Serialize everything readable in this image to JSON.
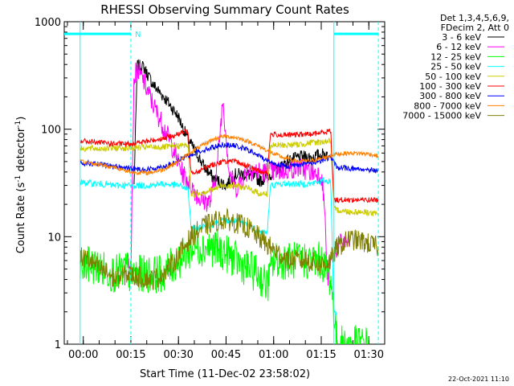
{
  "chart_data": {
    "type": "line",
    "title": "RHESSI Observing Summary Count Rates",
    "xlabel": "Start Time (11-Dec-02 23:58:02)",
    "ylabel": "Count Rate (s⁻¹ detector⁻¹)",
    "ylabel_main": "Count Rate (s",
    "ylabel_sup1": "-1",
    "ylabel_mid": " detector",
    "ylabel_sup2": "-1",
    "ylabel_end": ")",
    "y_scale": "log",
    "ylim": [
      1,
      1000
    ],
    "xlim_minutes": [
      -6,
      95
    ],
    "x_ticks": [
      {
        "m": 0,
        "label": "00:00"
      },
      {
        "m": 15,
        "label": "00:15"
      },
      {
        "m": 30,
        "label": "00:30"
      },
      {
        "m": 45,
        "label": "00:45"
      },
      {
        "m": 60,
        "label": "01:00"
      },
      {
        "m": 75,
        "label": "01:15"
      },
      {
        "m": 90,
        "label": "01:30"
      }
    ],
    "y_ticks": [
      {
        "v": 1,
        "label": "1"
      },
      {
        "v": 10,
        "label": "10"
      },
      {
        "v": 100,
        "label": "100"
      },
      {
        "v": 1000,
        "label": "1000"
      }
    ],
    "legend_header": [
      "Det 1,3,4,5,6,9,",
      "FDecim 2, Att 0"
    ],
    "legend_position": "top-right outside",
    "series": [
      {
        "name": "3 - 6 keV",
        "color": "#000000",
        "points": [
          [
            16,
            30
          ],
          [
            17,
            390
          ],
          [
            19,
            380
          ],
          [
            22,
            260
          ],
          [
            26,
            190
          ],
          [
            30,
            130
          ],
          [
            33,
            80
          ],
          [
            36,
            58
          ],
          [
            38,
            45
          ],
          [
            41,
            35
          ],
          [
            45,
            30
          ],
          [
            48,
            38
          ],
          [
            52,
            38
          ],
          [
            56,
            33
          ],
          [
            60,
            40
          ],
          [
            64,
            50
          ],
          [
            68,
            55
          ],
          [
            72,
            55
          ],
          [
            75,
            58
          ],
          [
            77,
            60
          ]
        ]
      },
      {
        "name": "6 - 12 keV",
        "color": "#ff00ff",
        "points": [
          [
            14,
            6
          ],
          [
            15,
            6
          ],
          [
            16,
            300
          ],
          [
            17,
            360
          ],
          [
            19,
            280
          ],
          [
            22,
            170
          ],
          [
            25,
            110
          ],
          [
            28,
            70
          ],
          [
            31,
            40
          ],
          [
            34,
            30
          ],
          [
            37,
            22
          ],
          [
            40,
            21
          ],
          [
            42,
            40
          ],
          [
            44,
            190
          ],
          [
            46,
            40
          ],
          [
            48,
            28
          ],
          [
            52,
            42
          ],
          [
            56,
            40
          ],
          [
            60,
            40
          ],
          [
            64,
            42
          ],
          [
            68,
            44
          ],
          [
            72,
            40
          ],
          [
            75,
            38
          ],
          [
            76,
            20
          ],
          [
            77,
            4
          ],
          [
            78,
            6
          ],
          [
            80,
            8
          ],
          [
            82,
            9
          ],
          [
            84,
            9
          ]
        ]
      },
      {
        "name": "12 - 25 keV",
        "color": "#00ff00",
        "points": [
          [
            -1,
            5
          ],
          [
            2,
            5.5
          ],
          [
            6,
            5
          ],
          [
            10,
            4.5
          ],
          [
            14,
            5
          ],
          [
            15,
            4
          ],
          [
            16,
            4.5
          ],
          [
            20,
            4.5
          ],
          [
            25,
            4.5
          ],
          [
            30,
            6
          ],
          [
            35,
            8
          ],
          [
            40,
            8
          ],
          [
            45,
            7
          ],
          [
            50,
            5.5
          ],
          [
            55,
            4.5
          ],
          [
            58,
            3.5
          ],
          [
            60,
            6
          ],
          [
            64,
            6
          ],
          [
            70,
            6
          ],
          [
            75,
            6
          ],
          [
            78,
            4
          ],
          [
            80,
            1
          ],
          [
            90,
            1
          ]
        ]
      },
      {
        "name": "25 - 50 keV",
        "color": "#00ffff",
        "points": [
          [
            -1,
            32
          ],
          [
            5,
            31
          ],
          [
            10,
            30
          ],
          [
            15,
            30
          ],
          [
            20,
            30
          ],
          [
            25,
            31
          ],
          [
            30,
            30
          ],
          [
            33,
            28
          ],
          [
            34,
            12
          ],
          [
            36,
            12
          ],
          [
            40,
            13
          ],
          [
            44,
            14
          ],
          [
            48,
            14
          ],
          [
            52,
            13
          ],
          [
            56,
            11
          ],
          [
            58,
            11
          ],
          [
            59,
            30
          ],
          [
            63,
            31
          ],
          [
            68,
            31
          ],
          [
            72,
            31
          ],
          [
            75,
            33
          ],
          [
            78,
            33
          ],
          [
            79,
            2
          ],
          [
            80,
            2
          ]
        ]
      },
      {
        "name": "50 - 100 keV",
        "color": "#cccc00",
        "points": [
          [
            -1,
            66
          ],
          [
            5,
            66
          ],
          [
            10,
            67
          ],
          [
            15,
            67
          ],
          [
            20,
            68
          ],
          [
            25,
            68
          ],
          [
            30,
            70
          ],
          [
            33,
            71
          ],
          [
            34,
            25
          ],
          [
            36,
            25
          ],
          [
            40,
            27
          ],
          [
            44,
            30
          ],
          [
            48,
            30
          ],
          [
            52,
            28
          ],
          [
            56,
            25
          ],
          [
            58,
            25
          ],
          [
            59,
            70
          ],
          [
            63,
            71
          ],
          [
            68,
            72
          ],
          [
            72,
            75
          ],
          [
            75,
            76
          ],
          [
            78,
            78
          ],
          [
            79,
            18
          ],
          [
            84,
            17
          ],
          [
            89,
            17
          ],
          [
            93,
            16
          ]
        ]
      },
      {
        "name": "100 - 300 keV",
        "color": "#ff0000",
        "points": [
          [
            -1,
            78
          ],
          [
            5,
            75
          ],
          [
            10,
            73
          ],
          [
            15,
            73
          ],
          [
            20,
            77
          ],
          [
            25,
            82
          ],
          [
            30,
            90
          ],
          [
            33,
            97
          ],
          [
            34,
            40
          ],
          [
            36,
            40
          ],
          [
            40,
            46
          ],
          [
            44,
            50
          ],
          [
            48,
            50
          ],
          [
            52,
            45
          ],
          [
            56,
            40
          ],
          [
            58,
            40
          ],
          [
            59,
            90
          ],
          [
            63,
            88
          ],
          [
            68,
            89
          ],
          [
            72,
            90
          ],
          [
            75,
            93
          ],
          [
            78,
            97
          ],
          [
            79,
            22
          ],
          [
            84,
            22
          ],
          [
            89,
            22
          ],
          [
            93,
            22
          ]
        ]
      },
      {
        "name": "300 - 800 keV",
        "color": "#0000ff",
        "points": [
          [
            -1,
            49
          ],
          [
            5,
            47
          ],
          [
            10,
            45
          ],
          [
            15,
            43
          ],
          [
            20,
            42
          ],
          [
            25,
            45
          ],
          [
            28,
            47
          ],
          [
            31,
            53
          ],
          [
            35,
            60
          ],
          [
            40,
            67
          ],
          [
            44,
            72
          ],
          [
            48,
            70
          ],
          [
            52,
            64
          ],
          [
            56,
            55
          ],
          [
            60,
            48
          ],
          [
            64,
            45
          ],
          [
            68,
            47
          ],
          [
            72,
            49
          ],
          [
            75,
            51
          ],
          [
            78,
            55
          ],
          [
            80,
            44
          ],
          [
            85,
            43
          ],
          [
            90,
            42
          ],
          [
            93,
            41
          ]
        ]
      },
      {
        "name": "800 - 7000 keV",
        "color": "#ff8000",
        "points": [
          [
            -1,
            50
          ],
          [
            5,
            47
          ],
          [
            10,
            44
          ],
          [
            15,
            40
          ],
          [
            20,
            39
          ],
          [
            25,
            42
          ],
          [
            30,
            50
          ],
          [
            35,
            64
          ],
          [
            40,
            78
          ],
          [
            44,
            86
          ],
          [
            48,
            84
          ],
          [
            52,
            77
          ],
          [
            56,
            68
          ],
          [
            60,
            59
          ],
          [
            64,
            53
          ],
          [
            68,
            50
          ],
          [
            72,
            51
          ],
          [
            75,
            53
          ],
          [
            78,
            57
          ],
          [
            80,
            59
          ],
          [
            85,
            60
          ],
          [
            90,
            59
          ],
          [
            93,
            56
          ]
        ]
      },
      {
        "name": "7000 - 15000 keV",
        "color": "#808000",
        "points": [
          [
            -1,
            6.5
          ],
          [
            2,
            6
          ],
          [
            5,
            5
          ],
          [
            8,
            4.5
          ],
          [
            10,
            4
          ],
          [
            14,
            4.5
          ],
          [
            18,
            4.2
          ],
          [
            22,
            4
          ],
          [
            25,
            4.5
          ],
          [
            28,
            5.5
          ],
          [
            31,
            7.5
          ],
          [
            34,
            10
          ],
          [
            38,
            12.5
          ],
          [
            42,
            14
          ],
          [
            45,
            14.5
          ],
          [
            48,
            13.5
          ],
          [
            52,
            12
          ],
          [
            56,
            9.5
          ],
          [
            60,
            7.5
          ],
          [
            65,
            6
          ],
          [
            70,
            6
          ],
          [
            75,
            5.5
          ],
          [
            78,
            6
          ],
          [
            80,
            8
          ],
          [
            84,
            9.5
          ],
          [
            88,
            9
          ],
          [
            93,
            8
          ]
        ]
      }
    ],
    "annotations": [
      {
        "type": "segment",
        "color": "#00ffff",
        "y": 770,
        "x_range": [
          -6,
          15
        ],
        "label": "N"
      },
      {
        "type": "segment",
        "color": "#00ffff",
        "y": 770,
        "x_range": [
          79,
          93
        ],
        "label": ""
      },
      {
        "type": "vline",
        "color": "#00ffff",
        "x": -1,
        "style": "solid"
      },
      {
        "type": "vline",
        "color": "#00ffff",
        "x": 15,
        "style": "dashed"
      },
      {
        "type": "vline",
        "color": "#00ffff",
        "x": 79,
        "style": "solid"
      },
      {
        "type": "vline",
        "color": "#00ffff",
        "x": 93,
        "style": "dashed"
      }
    ],
    "footer_timestamp": "22-Oct-2021 11:10"
  }
}
